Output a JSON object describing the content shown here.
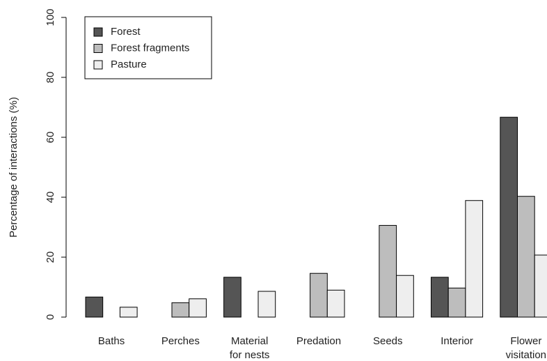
{
  "chart_data": {
    "type": "bar",
    "ylabel": "Percentage of interactions (%)",
    "categories": [
      "Baths",
      "Perches",
      "Material\nfor nests",
      "Predation",
      "Seeds",
      "Interior",
      "Flower\nvisitation"
    ],
    "series": [
      {
        "name": "Forest",
        "color": "#555555",
        "values": [
          6.7,
          0,
          13.3,
          0,
          0,
          13.3,
          66.7
        ]
      },
      {
        "name": "Forest fragments",
        "color": "#bdbdbd",
        "values": [
          0,
          4.8,
          0,
          14.6,
          30.6,
          9.7,
          40.3
        ]
      },
      {
        "name": "Pasture",
        "color": "#eeeeee",
        "values": [
          3.3,
          6.1,
          8.6,
          9.0,
          13.9,
          38.9,
          20.7
        ]
      }
    ],
    "ylim": [
      0,
      100
    ],
    "yticks": [
      0,
      20,
      40,
      60,
      80,
      100
    ],
    "legend": "upper left"
  }
}
